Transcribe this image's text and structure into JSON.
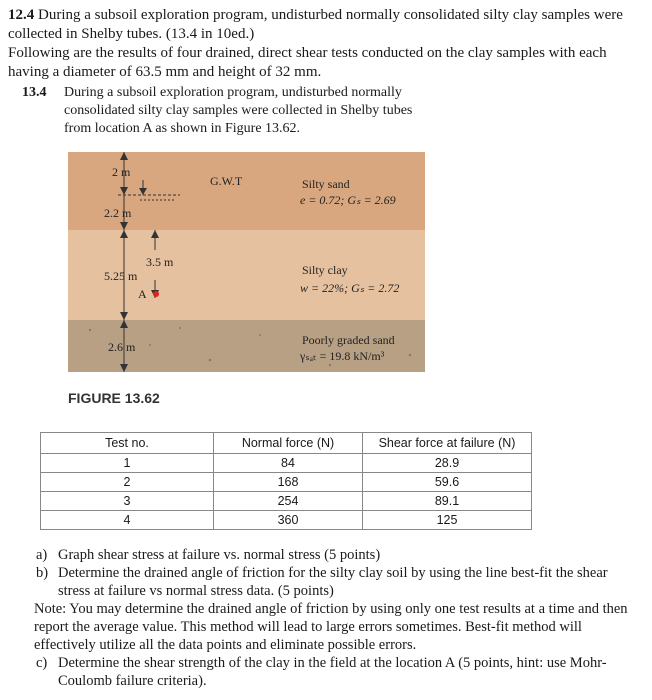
{
  "header": {
    "number": "12.4",
    "text": "During a subsoil exploration program, undisturbed normally consolidated silty clay samples were collected in Shelby tubes. (13.4 in 10ed.)"
  },
  "intro": "Following are the results of four drained, direct shear tests conducted on the clay samples with each having a diameter of 63.5 mm and height of 32 mm.",
  "problem": {
    "number": "13.4",
    "text": "During a subsoil exploration program, undisturbed normally consolidated silty clay samples were collected in Shelby tubes from location A as shown in Figure 13.62."
  },
  "figure": {
    "caption": "FIGURE 13.62",
    "dimensions": [
      "2 m",
      "2.2 m",
      "3.5 m",
      "5.25 m",
      "2.6 m"
    ],
    "point": "A",
    "water_table": "G.W.T",
    "layers": [
      {
        "name": "Silty sand",
        "props": "e = 0.72; Gₛ = 2.69"
      },
      {
        "name": "Silty clay",
        "props": "w = 22%; Gₛ = 2.72"
      },
      {
        "name": "Poorly graded sand",
        "props": "γₛₐₜ = 19.8 kN/m³"
      }
    ]
  },
  "table": {
    "headers": [
      "Test no.",
      "Normal force (N)",
      "Shear force at failure (N)"
    ],
    "rows": [
      [
        1,
        84,
        28.9
      ],
      [
        2,
        168,
        59.6
      ],
      [
        3,
        254,
        89.1
      ],
      [
        4,
        360,
        125
      ]
    ]
  },
  "questions": [
    {
      "label": "a)",
      "text": "Graph shear stress at failure vs. normal stress (5 points)"
    },
    {
      "label": "b)",
      "text": "Determine the drained angle of friction for the silty clay soil by using the line best-fit the shear stress at failure vs normal stress data. (5 points)"
    },
    {
      "label": "c)",
      "text": "Determine the shear strength of the clay in the field at the location A (5 points, hint: use Mohr-Coulomb failure criteria)."
    }
  ],
  "note": "Note: You may determine the drained angle of friction by using only one test results at a time and then report the average value. This method will lead to large errors sometimes. Best-fit method will effectively utilize all the data points and eliminate possible errors."
}
